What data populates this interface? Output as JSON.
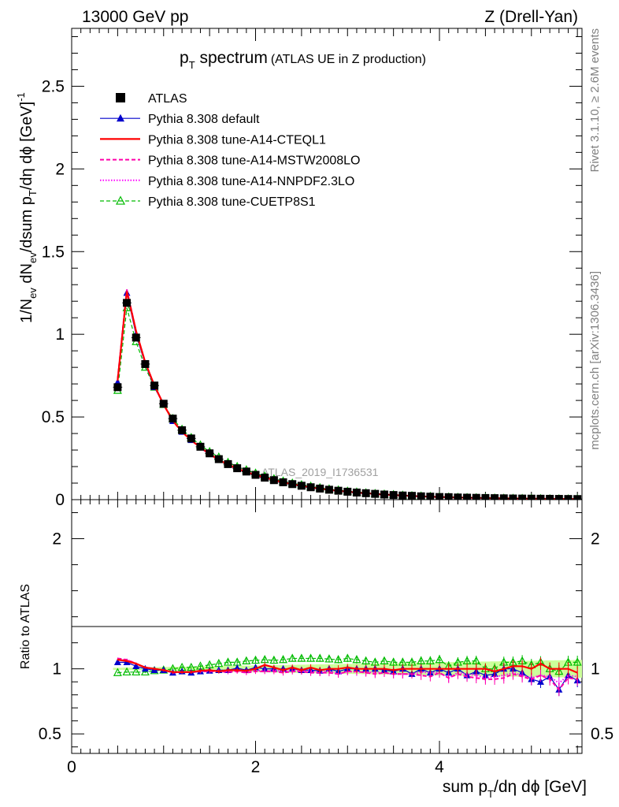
{
  "header": {
    "left": "13000 GeV pp",
    "right": "Z (Drell-Yan)"
  },
  "plot_title": {
    "main": "p",
    "main_sub": "T",
    "main_tail": " spectrum",
    "paren": "(ATLAS UE in Z production)"
  },
  "side_text": {
    "rivet": "Rivet 3.1.10, ≥ 2.6M events",
    "mcplots": "mcplots.cern.ch [arXiv:1306.3436]"
  },
  "watermark": "ATLAS_2019_I1736531",
  "colors": {
    "atlas": "#000000",
    "default": "#0000cc",
    "cteql1": "#ff0000",
    "mstw": "#ff00aa",
    "nnpdf": "#ff00ff",
    "cuetp8s1": "#00bb00",
    "band": "#ccff99"
  },
  "chart_data": [
    {
      "type": "scatter",
      "panel": "main",
      "ylabel": "1/N_ev dN_ev/dsum p_T/dη dϕ [GeV]^-1",
      "xlim": [
        0,
        5.55
      ],
      "ylim": [
        0,
        2.85
      ],
      "yticks": [
        "0",
        "0.5",
        "1",
        "1.5",
        "2",
        "2.5"
      ],
      "x": [
        0.5,
        0.6,
        0.7,
        0.8,
        0.9,
        1.0,
        1.1,
        1.2,
        1.3,
        1.4,
        1.5,
        1.6,
        1.7,
        1.8,
        1.9,
        2.0,
        2.1,
        2.2,
        2.3,
        2.4,
        2.5,
        2.6,
        2.7,
        2.8,
        2.9,
        3.0,
        3.1,
        3.2,
        3.3,
        3.4,
        3.5,
        3.6,
        3.7,
        3.8,
        3.9,
        4.0,
        4.1,
        4.2,
        4.3,
        4.4,
        4.5,
        4.6,
        4.7,
        4.8,
        4.9,
        5.0,
        5.1,
        5.2,
        5.3,
        5.4,
        5.5
      ],
      "series": [
        {
          "name": "ATLAS",
          "key": "atlas",
          "values": [
            0.68,
            1.19,
            0.98,
            0.82,
            0.69,
            0.58,
            0.49,
            0.42,
            0.37,
            0.32,
            0.28,
            0.245,
            0.215,
            0.19,
            0.17,
            0.15,
            0.133,
            0.118,
            0.105,
            0.094,
            0.084,
            0.075,
            0.067,
            0.06,
            0.054,
            0.048,
            0.043,
            0.039,
            0.035,
            0.031,
            0.028,
            0.025,
            0.023,
            0.02,
            0.018,
            0.016,
            0.015,
            0.013,
            0.012,
            0.011,
            0.01,
            0.009,
            0.008,
            0.007,
            0.0065,
            0.006,
            0.0055,
            0.005,
            0.0045,
            0.004,
            0.0036
          ]
        },
        {
          "name": "Pythia 8.308 default",
          "key": "default",
          "values": [
            0.71,
            1.25,
            1.0,
            0.82,
            0.68,
            0.575,
            0.475,
            0.41,
            0.36,
            0.315,
            0.276,
            0.242,
            0.213,
            0.191,
            0.168,
            0.151,
            0.133,
            0.118,
            0.105,
            0.094,
            0.083,
            0.074,
            0.066,
            0.06,
            0.053,
            0.048,
            0.043,
            0.039,
            0.035,
            0.031,
            0.027,
            0.025,
            0.022,
            0.02,
            0.018,
            0.016,
            0.015,
            0.013,
            0.012,
            0.011,
            0.0095,
            0.0088,
            0.008,
            0.007,
            0.0063,
            0.0055,
            0.005,
            0.0047,
            0.0038,
            0.0038,
            0.0033
          ]
        },
        {
          "name": "Pythia 8.308 tune-A14-CTEQL1",
          "key": "cteql1",
          "values": [
            0.72,
            1.26,
            1.02,
            0.83,
            0.69,
            0.575,
            0.478,
            0.41,
            0.36,
            0.315,
            0.278,
            0.24,
            0.213,
            0.188,
            0.168,
            0.15,
            0.136,
            0.119,
            0.104,
            0.095,
            0.083,
            0.076,
            0.066,
            0.06,
            0.054,
            0.049,
            0.043,
            0.039,
            0.035,
            0.031,
            0.028,
            0.025,
            0.023,
            0.02,
            0.018,
            0.016,
            0.015,
            0.013,
            0.012,
            0.011,
            0.01,
            0.0088,
            0.008,
            0.0072,
            0.0066,
            0.006,
            0.0057,
            0.005,
            0.0045,
            0.004,
            0.0035
          ]
        },
        {
          "name": "Pythia 8.308 tune-A14-MSTW2008LO",
          "key": "mstw",
          "values": [
            0.73,
            1.27,
            1.02,
            0.83,
            0.69,
            0.575,
            0.475,
            0.41,
            0.36,
            0.313,
            0.275,
            0.24,
            0.21,
            0.186,
            0.165,
            0.147,
            0.13,
            0.116,
            0.102,
            0.092,
            0.082,
            0.073,
            0.065,
            0.058,
            0.052,
            0.047,
            0.042,
            0.038,
            0.033,
            0.03,
            0.027,
            0.024,
            0.022,
            0.019,
            0.017,
            0.0155,
            0.014,
            0.0125,
            0.0113,
            0.0102,
            0.0092,
            0.0083,
            0.0074,
            0.0067,
            0.0061,
            0.0055,
            0.0052,
            0.0046,
            0.0038,
            0.0037,
            0.0033
          ]
        },
        {
          "name": "Pythia 8.308 tune-A14-NNPDF2.3LO",
          "key": "nnpdf",
          "values": [
            0.72,
            1.27,
            1.02,
            0.83,
            0.69,
            0.575,
            0.477,
            0.41,
            0.36,
            0.314,
            0.276,
            0.241,
            0.211,
            0.187,
            0.166,
            0.148,
            0.131,
            0.117,
            0.103,
            0.093,
            0.082,
            0.074,
            0.065,
            0.059,
            0.052,
            0.047,
            0.042,
            0.038,
            0.034,
            0.03,
            0.027,
            0.024,
            0.022,
            0.0195,
            0.0175,
            0.0155,
            0.014,
            0.0126,
            0.0115,
            0.0105,
            0.0093,
            0.0085,
            0.0076,
            0.0068,
            0.0062,
            0.0056,
            0.0052,
            0.0047,
            0.004,
            0.0038,
            0.0034
          ]
        },
        {
          "name": "Pythia 8.308 tune-CUETP8S1",
          "key": "cuetp8s1",
          "values": [
            0.66,
            1.16,
            0.955,
            0.8,
            0.68,
            0.575,
            0.49,
            0.425,
            0.375,
            0.33,
            0.29,
            0.257,
            0.225,
            0.2,
            0.18,
            0.16,
            0.142,
            0.126,
            0.112,
            0.1,
            0.09,
            0.081,
            0.072,
            0.064,
            0.058,
            0.051,
            0.046,
            0.041,
            0.037,
            0.033,
            0.03,
            0.027,
            0.024,
            0.0215,
            0.0195,
            0.0172,
            0.0157,
            0.0138,
            0.0125,
            0.0115,
            0.0103,
            0.0093,
            0.0085,
            0.0075,
            0.0069,
            0.0063,
            0.0058,
            0.0052,
            0.0047,
            0.0042,
            0.0039
          ]
        }
      ]
    },
    {
      "type": "line",
      "panel": "ratio",
      "ylabel": "Ratio to ATLAS",
      "xlabel": "sum p_T/dη dϕ [GeV]",
      "xlim": [
        0,
        5.55
      ],
      "ylim": [
        0.35,
        2.3
      ],
      "yticks": [
        "0.5",
        "1",
        "2"
      ],
      "xticks": [
        "0",
        "2",
        "4"
      ],
      "x": [
        0.5,
        0.6,
        0.7,
        0.8,
        0.9,
        1.0,
        1.1,
        1.2,
        1.3,
        1.4,
        1.5,
        1.6,
        1.7,
        1.8,
        1.9,
        2.0,
        2.1,
        2.2,
        2.3,
        2.4,
        2.5,
        2.6,
        2.7,
        2.8,
        2.9,
        3.0,
        3.1,
        3.2,
        3.3,
        3.4,
        3.5,
        3.6,
        3.7,
        3.8,
        3.9,
        4.0,
        4.1,
        4.2,
        4.3,
        4.4,
        4.5,
        4.6,
        4.7,
        4.8,
        4.9,
        5.0,
        5.1,
        5.2,
        5.3,
        5.4,
        5.5
      ],
      "series": [
        {
          "name": "Pythia 8.308 default",
          "key": "default",
          "values": [
            1.05,
            1.05,
            1.02,
            1.0,
            0.99,
            0.99,
            0.97,
            0.98,
            0.97,
            0.98,
            0.985,
            0.99,
            0.99,
            1.005,
            0.99,
            1.01,
            1.0,
            1.0,
            1.0,
            1.0,
            0.99,
            0.99,
            0.985,
            1.0,
            0.98,
            1.0,
            1.0,
            1.0,
            1.0,
            0.99,
            0.98,
            1.0,
            0.96,
            1.0,
            0.97,
            1.0,
            0.97,
            1.0,
            0.95,
            0.98,
            0.95,
            0.96,
            1.0,
            1.0,
            0.97,
            0.92,
            0.9,
            0.94,
            0.84,
            0.95,
            0.91
          ]
        },
        {
          "name": "Pythia 8.308 tune-A14-CTEQL1",
          "key": "cteql1",
          "values": [
            1.07,
            1.06,
            1.04,
            1.01,
            1.0,
            0.99,
            0.975,
            0.975,
            0.975,
            0.985,
            0.99,
            0.98,
            0.99,
            0.99,
            0.985,
            1.0,
            1.03,
            1.01,
            0.99,
            1.01,
            0.99,
            1.01,
            0.99,
            1.0,
            1.0,
            1.01,
            1.0,
            1.0,
            1.0,
            1.0,
            0.99,
            1.0,
            1.0,
            1.0,
            1.0,
            1.0,
            1.0,
            1.0,
            1.0,
            1.0,
            1.0,
            0.98,
            1.0,
            1.02,
            1.02,
            1.0,
            1.04,
            1.0,
            1.0,
            1.0,
            0.97
          ]
        },
        {
          "name": "Pythia 8.308 tune-A14-MSTW2008LO",
          "key": "mstw",
          "values": [
            1.08,
            1.07,
            1.04,
            1.01,
            1.0,
            0.99,
            0.97,
            0.975,
            0.975,
            0.98,
            0.98,
            0.98,
            0.975,
            0.98,
            0.97,
            0.98,
            0.98,
            0.98,
            0.97,
            0.98,
            0.98,
            0.97,
            0.97,
            0.97,
            0.96,
            0.98,
            0.98,
            0.97,
            0.96,
            0.97,
            0.96,
            0.96,
            0.96,
            0.95,
            0.94,
            0.97,
            0.93,
            0.96,
            0.94,
            0.93,
            0.92,
            0.92,
            0.93,
            0.96,
            0.94,
            0.92,
            0.95,
            0.92,
            0.84,
            0.93,
            0.92
          ]
        },
        {
          "name": "Pythia 8.308 tune-A14-NNPDF2.3LO",
          "key": "nnpdf",
          "values": [
            1.07,
            1.07,
            1.04,
            1.01,
            1.0,
            0.99,
            0.975,
            0.975,
            0.975,
            0.98,
            0.985,
            0.985,
            0.98,
            0.985,
            0.975,
            0.985,
            0.985,
            0.99,
            0.98,
            0.99,
            0.98,
            0.985,
            0.97,
            0.985,
            0.96,
            0.98,
            0.975,
            0.975,
            0.97,
            0.97,
            0.96,
            0.96,
            0.96,
            0.975,
            0.97,
            0.97,
            0.93,
            0.97,
            0.96,
            0.95,
            0.93,
            0.94,
            0.95,
            0.97,
            0.95,
            0.93,
            0.95,
            0.94,
            0.89,
            0.95,
            0.94
          ]
        },
        {
          "name": "Pythia 8.308 tune-CUETP8S1",
          "key": "cuetp8s1",
          "values": [
            0.97,
            0.975,
            0.975,
            0.975,
            0.985,
            0.99,
            1.0,
            1.01,
            1.01,
            1.02,
            1.03,
            1.04,
            1.05,
            1.05,
            1.06,
            1.065,
            1.07,
            1.065,
            1.07,
            1.08,
            1.08,
            1.08,
            1.08,
            1.075,
            1.07,
            1.08,
            1.07,
            1.06,
            1.05,
            1.06,
            1.05,
            1.05,
            1.05,
            1.06,
            1.06,
            1.07,
            1.02,
            1.05,
            1.06,
            1.06,
            1.0,
            1.0,
            1.05,
            1.05,
            1.06,
            1.03,
            1.05,
            1.0,
            0.98,
            1.05,
            1.05
          ]
        }
      ]
    }
  ]
}
